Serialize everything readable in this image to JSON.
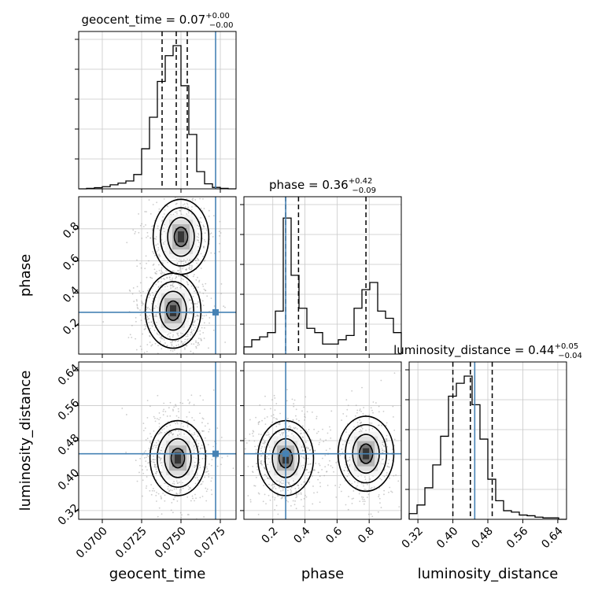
{
  "chart_data": {
    "type": "corner",
    "parameters": [
      "geocent_time",
      "phase",
      "luminosity_distance"
    ],
    "titles": [
      {
        "param": "geocent_time",
        "prefix": "geocent_time = ",
        "median": "0.07",
        "plus": "+0.00",
        "minus": "−0.00"
      },
      {
        "param": "phase",
        "prefix": "phase = ",
        "median": "0.36",
        "plus": "+0.42",
        "minus": "−0.09"
      },
      {
        "param": "luminosity_distance",
        "prefix": "luminosity_distance = ",
        "median": "0.44",
        "plus": "+0.05",
        "minus": "−0.04"
      }
    ],
    "axis_ranges": {
      "geocent_time": [
        0.0685,
        0.0785
      ],
      "phase": [
        0.02,
        1.0
      ],
      "luminosity_distance": [
        0.3,
        0.66
      ]
    },
    "ticks": {
      "geocent_time": {
        "values": [
          0.07,
          0.0725,
          0.075,
          0.0775
        ],
        "labels": [
          "0.0700",
          "0.0725",
          "0.0750",
          "0.0775"
        ]
      },
      "phase": {
        "values": [
          0.2,
          0.4,
          0.6,
          0.8
        ],
        "labels": [
          "0.2",
          "0.4",
          "0.6",
          "0.8"
        ]
      },
      "luminosity_distance": {
        "values": [
          0.32,
          0.4,
          0.48,
          0.56,
          0.64
        ],
        "labels": [
          "0.32",
          "0.40",
          "0.48",
          "0.56",
          "0.64"
        ]
      }
    },
    "truths": {
      "geocent_time": 0.0772,
      "phase": 0.28,
      "luminosity_distance": 0.45
    },
    "quantiles": {
      "geocent_time": [
        0.0738,
        0.0747,
        0.0754
      ],
      "phase": [
        0.28,
        0.36,
        0.78
      ],
      "luminosity_distance": [
        0.4,
        0.44,
        0.49
      ]
    },
    "histograms": {
      "geocent_time": [
        0,
        0.003,
        0.008,
        0.015,
        0.028,
        0.04,
        0.055,
        0.1,
        0.28,
        0.5,
        0.75,
        0.93,
        1.0,
        0.72,
        0.38,
        0.12,
        0.035,
        0.01,
        0.003,
        0
      ],
      "phase": [
        0.05,
        0.1,
        0.12,
        0.15,
        0.3,
        0.95,
        0.55,
        0.32,
        0.18,
        0.15,
        0.07,
        0.07,
        0.1,
        0.13,
        0.32,
        0.45,
        0.5,
        0.3,
        0.25,
        0.15
      ],
      "luminosity_distance": [
        0.04,
        0.1,
        0.22,
        0.38,
        0.58,
        0.86,
        0.95,
        1.0,
        0.8,
        0.56,
        0.28,
        0.13,
        0.06,
        0.05,
        0.03,
        0.025,
        0.015,
        0.01,
        0.01,
        0
      ]
    },
    "pair_modes": {
      "geocent_time__phase": [
        {
          "x": 0.0745,
          "y": 0.29,
          "weight": 1.0
        },
        {
          "x": 0.075,
          "y": 0.75,
          "weight": 0.7
        }
      ],
      "geocent_time__luminosity_distance": [
        {
          "x": 0.0748,
          "y": 0.44,
          "weight": 1.0
        }
      ],
      "phase__luminosity_distance": [
        {
          "x": 0.28,
          "y": 0.44,
          "weight": 1.0
        },
        {
          "x": 0.78,
          "y": 0.45,
          "weight": 0.6
        }
      ]
    },
    "grid": true,
    "colors": {
      "truth": "#4682b4",
      "hist": "#000000",
      "grid": "#c8c8c8",
      "points": "#9a9a9a"
    }
  }
}
